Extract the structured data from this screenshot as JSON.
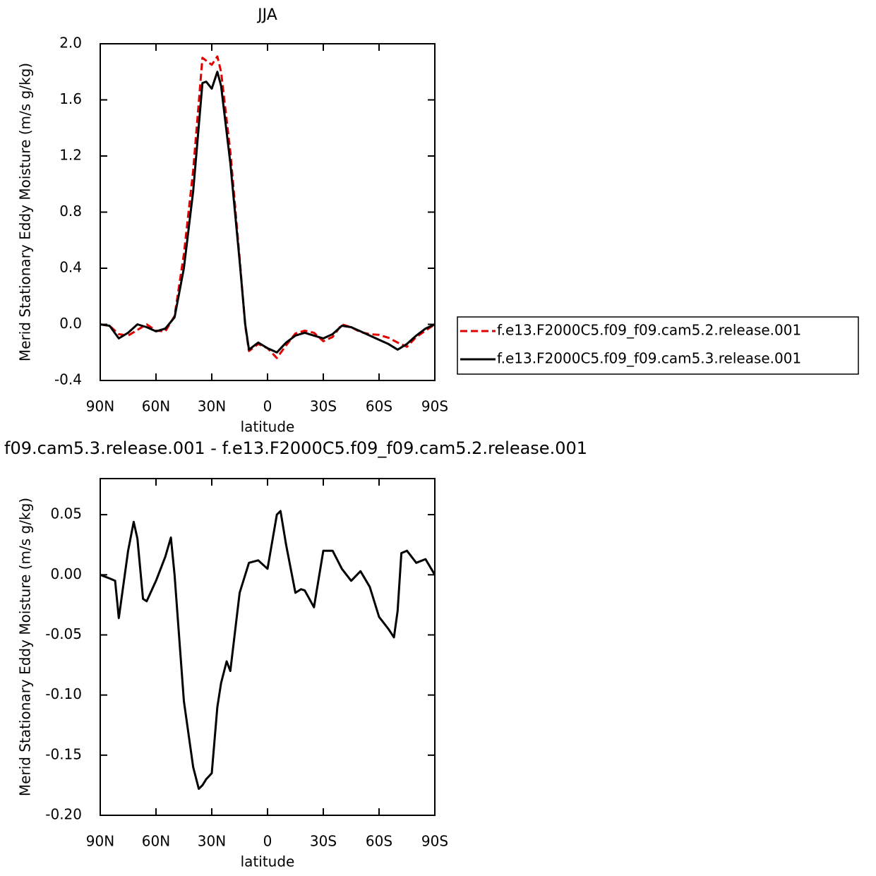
{
  "chart_data": [
    {
      "type": "line",
      "title": "JJA",
      "x_label": "latitude",
      "y_label": "Merid Stationary Eddy Moisture (m/s g/kg)",
      "x": [
        90,
        85,
        80,
        75,
        70,
        65,
        60,
        55,
        50,
        45,
        40,
        35,
        33,
        30,
        27,
        25,
        20,
        15,
        12,
        10,
        5,
        0,
        -5,
        -10,
        -15,
        -20,
        -25,
        -30,
        -35,
        -40,
        -45,
        -50,
        -55,
        -60,
        -65,
        -70,
        -75,
        -80,
        -85,
        -90
      ],
      "series": [
        {
          "name": "f.e13.F2000C5.f09_f09.cam5.2.release.001",
          "color": "#e00000",
          "dashed": true,
          "values": [
            0,
            -0.01,
            -0.07,
            -0.08,
            -0.04,
            0,
            -0.045,
            -0.05,
            0.06,
            0.5,
            1.1,
            1.9,
            1.88,
            1.85,
            1.91,
            1.8,
            1.23,
            0.47,
            -0.01,
            -0.19,
            -0.14,
            -0.17,
            -0.24,
            -0.15,
            -0.065,
            -0.045,
            -0.06,
            -0.12,
            -0.09,
            0,
            -0.02,
            -0.055,
            -0.07,
            -0.075,
            -0.095,
            -0.13,
            -0.16,
            -0.09,
            -0.045,
            0
          ]
        },
        {
          "name": "f.e13.F2000C5.f09_f09.cam5.3.release.001",
          "color": "#000000",
          "dashed": false,
          "values": [
            0,
            -0.01,
            -0.1,
            -0.06,
            0,
            -0.02,
            -0.05,
            -0.03,
            0.05,
            0.4,
            0.95,
            1.72,
            1.73,
            1.68,
            1.8,
            1.7,
            1.15,
            0.45,
            0,
            -0.18,
            -0.13,
            -0.17,
            -0.2,
            -0.13,
            -0.08,
            -0.06,
            -0.08,
            -0.1,
            -0.07,
            -0.01,
            -0.02,
            -0.05,
            -0.08,
            -0.11,
            -0.14,
            -0.18,
            -0.14,
            -0.08,
            -0.03,
            0
          ]
        }
      ],
      "xlim": [
        90,
        -90
      ],
      "xticks": [
        {
          "value": 90,
          "label": "90N"
        },
        {
          "value": 60,
          "label": "60N"
        },
        {
          "value": 30,
          "label": "30N"
        },
        0,
        {
          "value": -30,
          "label": "30S"
        },
        {
          "value": -60,
          "label": "60S"
        },
        {
          "value": -90,
          "label": "90S"
        }
      ],
      "ylim": [
        -0.4,
        2
      ],
      "yticks": [
        -0.4,
        {
          "value": 0,
          "label": "0.0"
        },
        0.4,
        0.8,
        1.2,
        1.6,
        {
          "value": 2,
          "label": "2.0"
        }
      ],
      "legend": "right"
    },
    {
      "type": "line",
      "title": "f09.cam5.3.release.001 - f.e13.F2000C5.f09_f09.cam5.2.release.001",
      "x_label": "latitude",
      "y_label": "Merid Stationary Eddy Moisture (m/s g/kg)",
      "x": [
        90,
        85,
        82,
        80,
        75,
        72,
        70,
        67,
        65,
        60,
        55,
        52,
        50,
        45,
        40,
        37,
        35,
        33,
        30,
        27,
        25,
        22,
        20,
        15,
        10,
        5,
        0,
        -5,
        -7,
        -10,
        -15,
        -18,
        -20,
        -25,
        -30,
        -35,
        -40,
        -45,
        -50,
        -55,
        -60,
        -65,
        -68,
        -70,
        -72,
        -75,
        -80,
        -85,
        -90
      ],
      "values": [
        0,
        -0.003,
        -0.005,
        -0.036,
        0.02,
        0.044,
        0.03,
        -0.02,
        -0.022,
        -0.005,
        0.015,
        0.031,
        0.0,
        -0.105,
        -0.16,
        -0.178,
        -0.175,
        -0.17,
        -0.165,
        -0.11,
        -0.09,
        -0.072,
        -0.08,
        -0.015,
        0.01,
        0.012,
        0.005,
        0.05,
        0.053,
        0.025,
        -0.015,
        -0.012,
        -0.013,
        -0.027,
        0.02,
        0.02,
        0.005,
        -0.005,
        0.003,
        -0.01,
        -0.035,
        -0.045,
        -0.052,
        -0.03,
        0.018,
        0.02,
        0.01,
        0.013,
        0
      ],
      "color": "#000000",
      "xlim": [
        90,
        -90
      ],
      "xticks": [
        {
          "value": 90,
          "label": "90N"
        },
        {
          "value": 60,
          "label": "60N"
        },
        {
          "value": 30,
          "label": "30N"
        },
        0,
        {
          "value": -30,
          "label": "30S"
        },
        {
          "value": -60,
          "label": "60S"
        },
        {
          "value": -90,
          "label": "90S"
        }
      ],
      "ylim": [
        -0.2,
        0.08
      ],
      "yticks": [
        {
          "value": -0.2,
          "label": "-0.20"
        },
        -0.15,
        {
          "value": -0.1,
          "label": "-0.10"
        },
        -0.05,
        {
          "value": 0,
          "label": "0.00"
        },
        0.05
      ]
    }
  ]
}
